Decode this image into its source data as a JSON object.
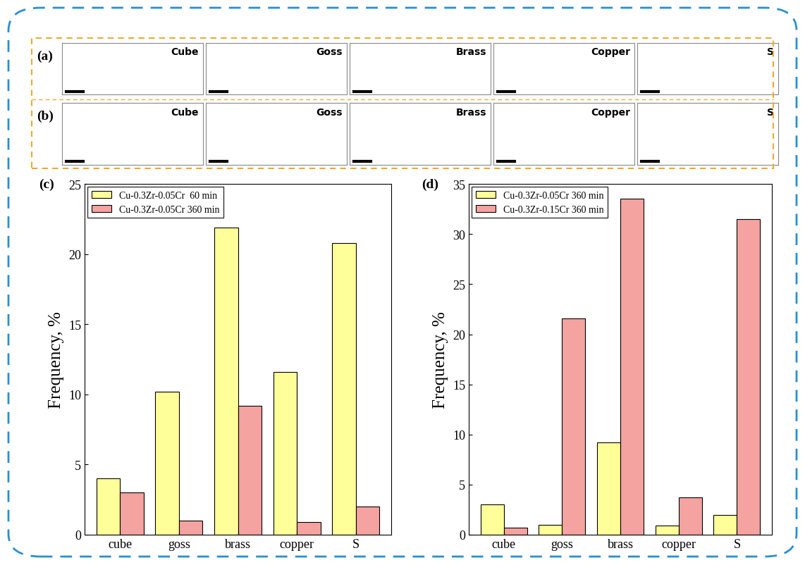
{
  "maps": [
    {
      "label": "(a)",
      "titles": [
        "Cube",
        "Goss",
        "Brass",
        "Copper",
        "S"
      ]
    },
    {
      "label": "(b)",
      "titles": [
        "Cube",
        "Goss",
        "Brass",
        "Copper",
        "S"
      ]
    }
  ],
  "chart_data": [
    {
      "type": "bar",
      "title": "(c)",
      "y_label": "Frequency, %",
      "categories": [
        "cube",
        "goss",
        "brass",
        "copper",
        "S"
      ],
      "series": [
        {
          "name": "Cu-0.3Zr-0.05Cr  60 min",
          "color": "#ffff99",
          "values": [
            4.0,
            10.2,
            21.9,
            11.6,
            20.8
          ]
        },
        {
          "name": "Cu-0.3Zr-0.05Cr 360 min",
          "color": "#f4a3a0",
          "values": [
            3.0,
            1.0,
            9.2,
            0.9,
            2.0
          ]
        }
      ],
      "ylim": [
        0,
        25
      ],
      "yticks": [
        0,
        5,
        10,
        15,
        20,
        25
      ],
      "legend": "upper left",
      "grid": false
    },
    {
      "type": "bar",
      "title": "(d)",
      "y_label": "Frequency, %",
      "categories": [
        "cube",
        "goss",
        "brass",
        "copper",
        "S"
      ],
      "series": [
        {
          "name": "Cu-0.3Zr-0.05Cr 360 min",
          "color": "#ffff99",
          "values": [
            3.0,
            1.0,
            9.2,
            0.9,
            2.0
          ]
        },
        {
          "name": "Cu-0.3Zr-0.15Cr 360 min",
          "color": "#f4a3a0",
          "values": [
            0.7,
            21.6,
            33.5,
            3.7,
            31.5
          ]
        }
      ],
      "ylim": [
        0,
        35
      ],
      "yticks": [
        0,
        5,
        10,
        15,
        20,
        25,
        30,
        35
      ],
      "legend": "upper left",
      "grid": false
    }
  ]
}
